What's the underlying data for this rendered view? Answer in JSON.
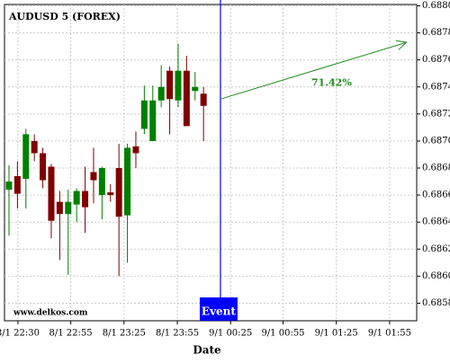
{
  "chart_data": {
    "type": "candlestick",
    "title": "AUDUSD 5 (FOREX)",
    "x_label": "Date",
    "watermark": "www.delkos.com",
    "x": [
      0,
      1,
      2,
      3,
      4,
      5,
      6,
      7,
      8,
      9,
      10,
      11,
      12,
      13,
      14,
      15,
      16,
      17,
      18,
      19,
      20,
      21,
      22,
      23
    ],
    "open": [
      0.68664,
      0.68674,
      0.68672,
      0.687,
      0.68691,
      0.68681,
      0.68655,
      0.68646,
      0.68653,
      0.68663,
      0.68677,
      0.6866,
      0.68662,
      0.6868,
      0.68645,
      0.68696,
      0.68709,
      0.687,
      0.6873,
      0.68752,
      0.6873,
      0.68752,
      0.68737,
      0.68735
    ],
    "high": [
      0.68682,
      0.68685,
      0.68709,
      0.68705,
      0.68695,
      0.68683,
      0.68663,
      0.68664,
      0.68665,
      0.68681,
      0.68695,
      0.68681,
      0.68668,
      0.68698,
      0.68698,
      0.68707,
      0.68741,
      0.68741,
      0.68756,
      0.68755,
      0.68772,
      0.68763,
      0.68751,
      0.6874
    ],
    "low": [
      0.6863,
      0.6865,
      0.6865,
      0.68685,
      0.68665,
      0.68628,
      0.68612,
      0.68601,
      0.6864,
      0.68632,
      0.68654,
      0.68642,
      0.68655,
      0.686,
      0.6861,
      0.6868,
      0.68705,
      0.687,
      0.68725,
      0.68705,
      0.68725,
      0.68711,
      0.6873,
      0.687
    ],
    "close": [
      0.6867,
      0.68661,
      0.68705,
      0.68691,
      0.68671,
      0.68641,
      0.68646,
      0.68655,
      0.68663,
      0.68651,
      0.68671,
      0.6868,
      0.6866,
      0.68644,
      0.68695,
      0.68691,
      0.6873,
      0.6873,
      0.6874,
      0.68731,
      0.68752,
      0.68711,
      0.6874,
      0.68726
    ],
    "up_color": "#008000",
    "down_color": "#800000",
    "xlim": [
      -0.53,
      48.2
    ],
    "xticks": [
      {
        "value": 1.06,
        "label": "8/1 22:30"
      },
      {
        "value": 7.3,
        "label": "8/1 22:55"
      },
      {
        "value": 13.6,
        "label": "8/1 23:25"
      },
      {
        "value": 19.9,
        "label": "8/1 23:55"
      },
      {
        "value": 26.2,
        "label": "9/1 00:25"
      },
      {
        "value": 32.4,
        "label": "9/1 00:55"
      },
      {
        "value": 38.7,
        "label": "9/1 01:25"
      },
      {
        "value": 45,
        "label": "9/1 01:55"
      }
    ],
    "ylim": [
      0.68567,
      0.68801
    ],
    "yticks": [
      {
        "value": 0.6858,
        "label": "0.6858"
      },
      {
        "value": 0.686,
        "label": "0.6860"
      },
      {
        "value": 0.6862,
        "label": "0.6862"
      },
      {
        "value": 0.6864,
        "label": "0.6864"
      },
      {
        "value": 0.6866,
        "label": "0.6866"
      },
      {
        "value": 0.6868,
        "label": "0.6868"
      },
      {
        "value": 0.687,
        "label": "0.6870"
      },
      {
        "value": 0.6872,
        "label": "0.6872"
      },
      {
        "value": 0.6874,
        "label": "0.6874"
      },
      {
        "value": 0.6876,
        "label": "0.6876"
      },
      {
        "value": 0.6878,
        "label": "0.6878"
      },
      {
        "value": 0.688,
        "label": "0.6880"
      }
    ],
    "grid": true,
    "event": {
      "label": "Event",
      "x": 25,
      "color": "#0000ff"
    },
    "arrow": {
      "x": [
        25,
        47
      ],
      "y": [
        0.68731,
        0.68773
      ],
      "label": "71.42%",
      "color": "#228b22"
    }
  }
}
